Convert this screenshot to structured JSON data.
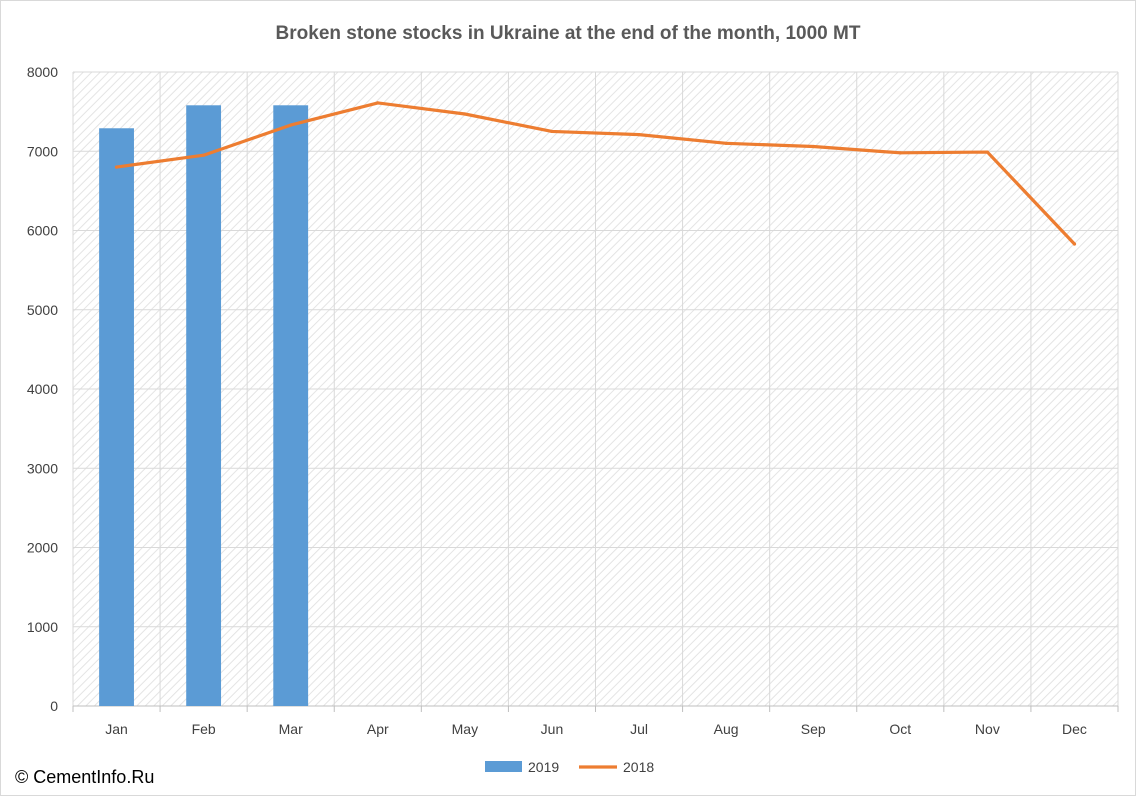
{
  "credit": "© CementInfo.Ru",
  "colors": {
    "series_2019": "#5b9bd5",
    "series_2018": "#ed7d31",
    "grid": "#d9d9d9",
    "hatch": "#e7e7e7"
  },
  "chart_data": {
    "type": "bar",
    "title": "Broken stone stocks in Ukraine at the end of the month, 1000 MT",
    "xlabel": "",
    "ylabel": "",
    "ylim": [
      0,
      8000
    ],
    "yticks": [
      0,
      1000,
      2000,
      3000,
      4000,
      5000,
      6000,
      7000,
      8000
    ],
    "grid": true,
    "legend": "bottom",
    "categories": [
      "Jan",
      "Feb",
      "Mar",
      "Apr",
      "May",
      "Jun",
      "Jul",
      "Aug",
      "Sep",
      "Oct",
      "Nov",
      "Dec"
    ],
    "series": [
      {
        "name": "2019",
        "type": "bar",
        "values": [
          7290,
          7580,
          7580,
          null,
          null,
          null,
          null,
          null,
          null,
          null,
          null,
          null
        ]
      },
      {
        "name": "2018",
        "type": "line",
        "values": [
          6800,
          6950,
          7330,
          7610,
          7470,
          7250,
          7210,
          7100,
          7060,
          6980,
          6990,
          5830
        ]
      }
    ]
  }
}
